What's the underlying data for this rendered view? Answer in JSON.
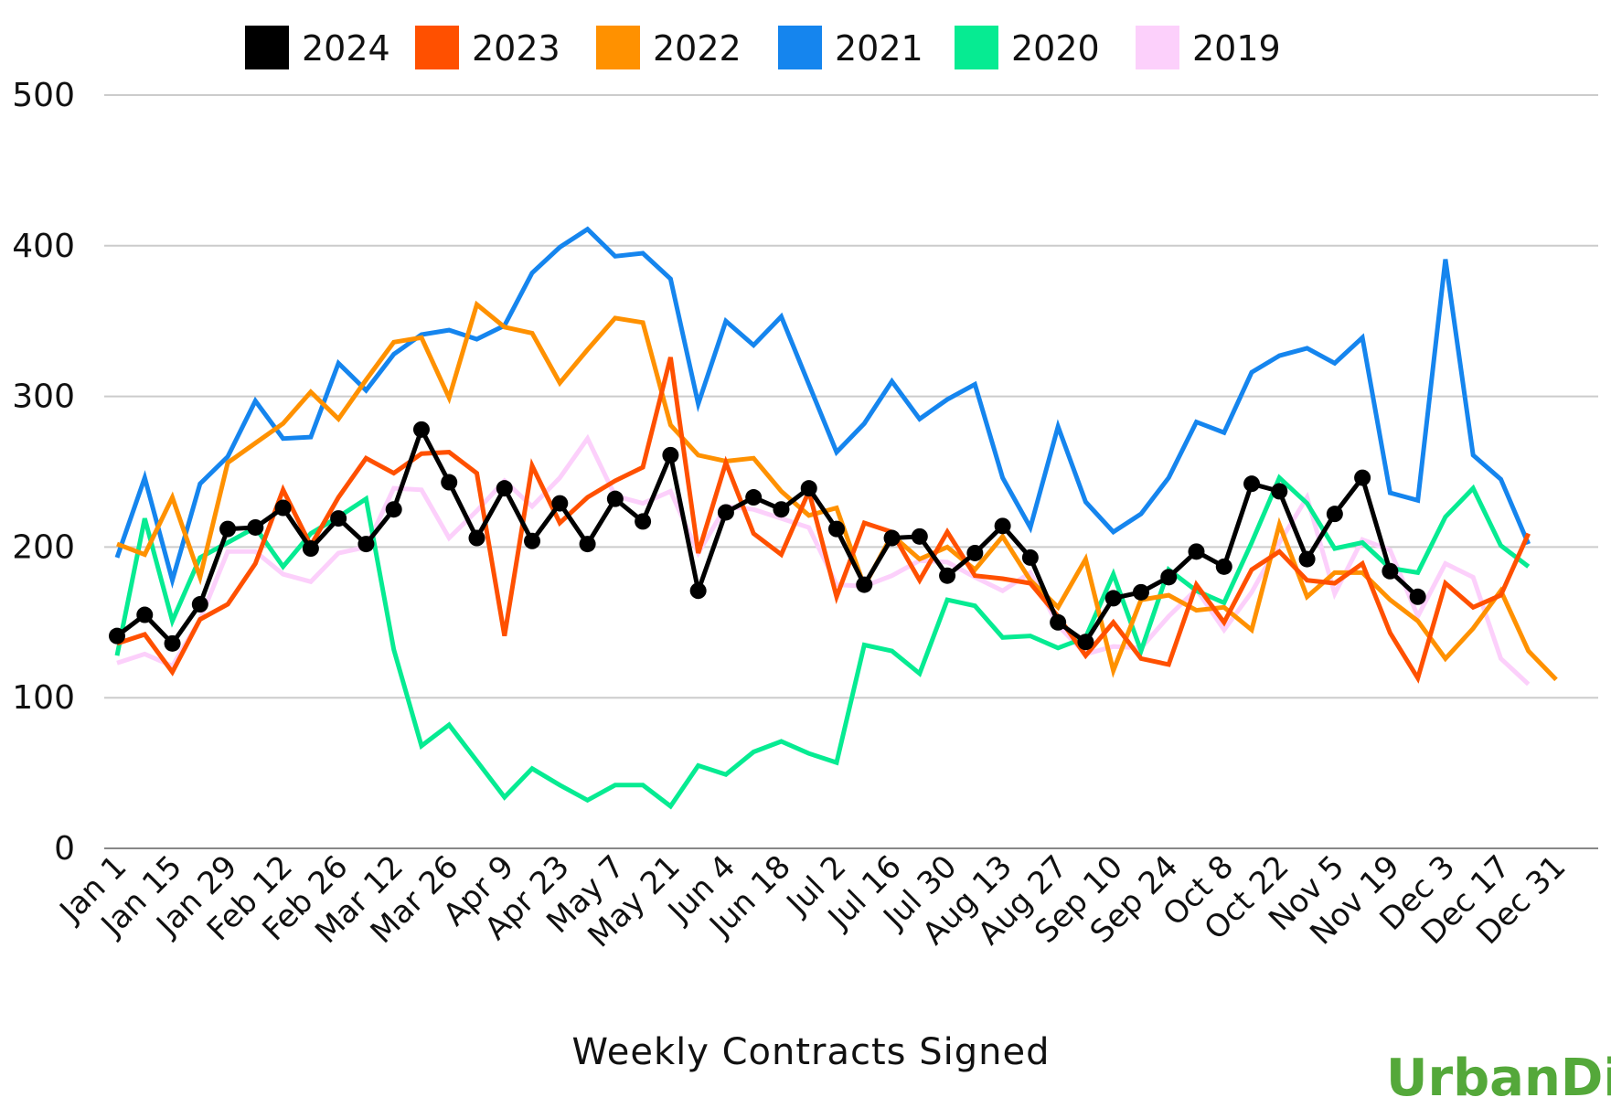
{
  "chart_data": {
    "type": "line",
    "title": "",
    "xlabel": "Weekly Contracts Signed",
    "ylabel": "",
    "ylim": [
      0,
      500
    ],
    "yticks": [
      0,
      100,
      200,
      300,
      400,
      500
    ],
    "grid": true,
    "legend_position": "top",
    "x_tick_labels": [
      "Jan 1",
      "Jan 15",
      "Jan 29",
      "Feb 12",
      "Feb 26",
      "Mar 12",
      "Mar 26",
      "Apr 9",
      "Apr 23",
      "May 7",
      "May 21",
      "Jun 4",
      "Jun 18",
      "Jul 2",
      "Jul 16",
      "Jul 30",
      "Aug 13",
      "Aug 27",
      "Sep 10",
      "Sep 24",
      "Oct 8",
      "Oct 22",
      "Nov 5",
      "Nov 19",
      "Dec 3",
      "Dec 17",
      "Dec 31"
    ],
    "num_weeks": 53,
    "series": [
      {
        "name": "2024",
        "color": "#000000",
        "markers": true,
        "values": [
          141,
          155,
          136,
          162,
          212,
          213,
          226,
          199,
          219,
          202,
          225,
          278,
          243,
          206,
          239,
          204,
          229,
          202,
          232,
          217,
          261,
          171,
          223,
          233,
          225,
          239,
          212,
          175,
          206,
          207,
          181,
          196,
          214,
          193,
          150,
          137,
          166,
          170,
          180,
          197,
          187,
          242,
          237,
          192,
          222,
          246,
          184,
          167
        ]
      },
      {
        "name": "2023",
        "color": "#ff5000",
        "markers": false,
        "values": [
          136,
          142,
          117,
          152,
          162,
          189,
          238,
          201,
          233,
          259,
          249,
          262,
          263,
          249,
          141,
          254,
          216,
          233,
          244,
          253,
          326,
          196,
          256,
          209,
          195,
          237,
          167,
          216,
          210,
          178,
          210,
          181,
          179,
          176,
          154,
          128,
          150,
          126,
          122,
          175,
          150,
          185,
          197,
          178,
          176,
          189,
          143,
          113,
          176,
          160,
          168,
          209
        ]
      },
      {
        "name": "2022",
        "color": "#ff9100",
        "markers": false,
        "values": [
          202,
          195,
          233,
          180,
          256,
          269,
          282,
          303,
          285,
          311,
          336,
          339,
          299,
          361,
          346,
          342,
          309,
          331,
          352,
          349,
          281,
          261,
          257,
          259,
          237,
          221,
          226,
          174,
          208,
          192,
          200,
          185,
          207,
          178,
          160,
          192,
          118,
          165,
          168,
          158,
          160,
          145,
          215,
          167,
          183,
          183,
          165,
          151,
          126,
          146,
          171,
          131,
          112
        ]
      },
      {
        "name": "2021",
        "color": "#1585ee",
        "markers": false,
        "values": [
          193,
          246,
          178,
          242,
          260,
          297,
          272,
          273,
          322,
          304,
          328,
          341,
          344,
          338,
          347,
          382,
          399,
          411,
          393,
          395,
          378,
          295,
          350,
          334,
          353,
          308,
          263,
          282,
          310,
          285,
          298,
          308,
          246,
          213,
          280,
          230,
          210,
          222,
          246,
          283,
          276,
          316,
          327,
          332,
          322,
          339,
          236,
          231,
          391,
          261,
          245,
          202
        ]
      },
      {
        "name": "2020",
        "color": "#06eb92",
        "markers": false,
        "values": [
          128,
          219,
          151,
          193,
          203,
          213,
          187,
          209,
          220,
          232,
          132,
          68,
          82,
          58,
          34,
          53,
          42,
          32,
          42,
          42,
          28,
          55,
          49,
          64,
          71,
          63,
          57,
          135,
          131,
          116,
          165,
          161,
          140,
          141,
          133,
          140,
          182,
          131,
          185,
          171,
          163,
          203,
          246,
          229,
          199,
          203,
          186,
          183,
          220,
          239,
          201,
          187
        ]
      },
      {
        "name": "2019",
        "color": "#fcd0fb",
        "markers": false,
        "values": [
          123,
          129,
          121,
          152,
          197,
          197,
          182,
          177,
          196,
          200,
          239,
          238,
          206,
          224,
          244,
          227,
          246,
          272,
          234,
          229,
          237,
          196,
          227,
          225,
          219,
          213,
          175,
          174,
          181,
          191,
          190,
          180,
          171,
          183,
          148,
          129,
          134,
          133,
          154,
          172,
          145,
          170,
          203,
          233,
          169,
          205,
          198,
          154,
          189,
          180,
          126,
          109
        ]
      }
    ]
  },
  "branding": {
    "logo_text": "UrbanDigs"
  }
}
